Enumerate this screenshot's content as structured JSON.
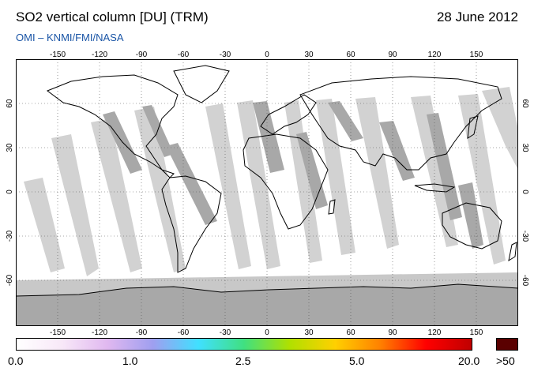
{
  "header": {
    "title": "SO2 vertical column [DU] (TRM)",
    "date": "28 June 2012",
    "subtitle": "OMI  –  KNMI/FMI/NASA"
  },
  "map": {
    "lon_ticks": [
      "-150",
      "-120",
      "-90",
      "-60",
      "-30",
      "0",
      "30",
      "60",
      "90",
      "120",
      "150"
    ],
    "lat_ticks": [
      "60",
      "30",
      "0",
      "-30",
      "-60"
    ],
    "colors": {
      "background": "#ffffff",
      "gap_swath": "#d2d2d2",
      "dark_swath": "#a8a8a8",
      "south_gap": "#c8c8c8",
      "coastline": "#000000"
    }
  },
  "colorbar": {
    "labels": [
      "0.0",
      "1.0",
      "2.5",
      "5.0",
      "20.0"
    ],
    "max_label": ">50",
    "max_color": "#5a0000",
    "stops": [
      "#ffffff",
      "#f8e8f8",
      "#e0b8f0",
      "#9f9ff0",
      "#40e0ff",
      "#40e080",
      "#b0e000",
      "#ffd000",
      "#ff8000",
      "#ff0000",
      "#c00000"
    ]
  }
}
